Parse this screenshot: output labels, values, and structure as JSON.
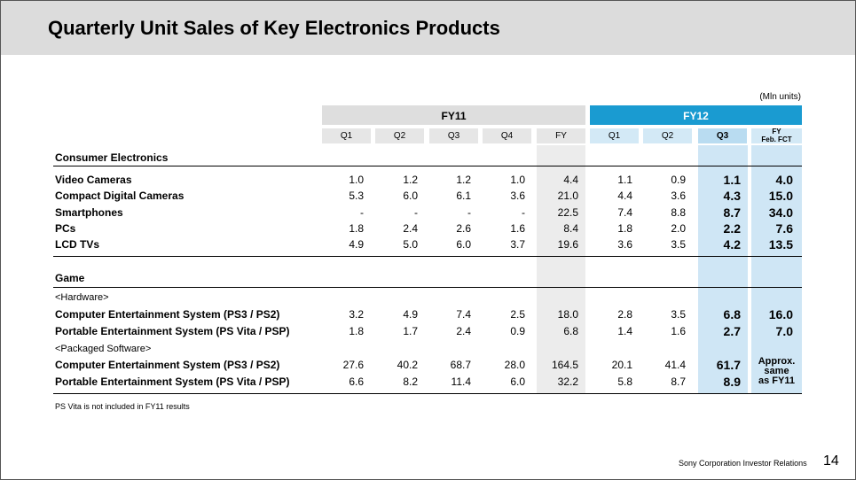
{
  "title": "Quarterly Unit Sales of Key Electronics Products",
  "units": "(Mln units)",
  "colors": {
    "fy12_header": "#1a9bd1",
    "fy11_header": "#dedede",
    "highlight": "#cfe6f5"
  },
  "headers": {
    "fy11": "FY11",
    "fy12": "FY12",
    "periods": [
      "Q1",
      "Q2",
      "Q3",
      "Q4",
      "FY",
      "Q1",
      "Q2",
      "Q3"
    ],
    "fct_line1": "FY",
    "fct_line2": "Feb. FCT"
  },
  "sections": {
    "consumer": "Consumer Electronics",
    "game": "Game",
    "hardware": "<Hardware>",
    "software": "<Packaged Software>"
  },
  "consumer_rows": [
    {
      "label": "Video Cameras",
      "values": [
        "1.0",
        "1.2",
        "1.2",
        "1.0",
        "4.4",
        "1.1",
        "0.9",
        "1.1",
        "4.0"
      ]
    },
    {
      "label": "Compact Digital Cameras",
      "values": [
        "5.3",
        "6.0",
        "6.1",
        "3.6",
        "21.0",
        "4.4",
        "3.6",
        "4.3",
        "15.0"
      ]
    },
    {
      "label": "Smartphones",
      "values": [
        "-",
        "-",
        "-",
        "-",
        "22.5",
        "7.4",
        "8.8",
        "8.7",
        "34.0"
      ]
    },
    {
      "label": "PCs",
      "values": [
        "1.8",
        "2.4",
        "2.6",
        "1.6",
        "8.4",
        "1.8",
        "2.0",
        "2.2",
        "7.6"
      ]
    },
    {
      "label": "LCD TVs",
      "values": [
        "4.9",
        "5.0",
        "6.0",
        "3.7",
        "19.6",
        "3.6",
        "3.5",
        "4.2",
        "13.5"
      ]
    }
  ],
  "hardware_rows": [
    {
      "pre": "Computer Entertainment System (",
      "mid": "PS3 / PS2",
      "post": ")",
      "values": [
        "3.2",
        "4.9",
        "7.4",
        "2.5",
        "18.0",
        "2.8",
        "3.5",
        "6.8",
        "16.0"
      ]
    },
    {
      "pre": "Portable Entertainment System (",
      "mid": "PS Vita / PSP",
      "post": ")",
      "values": [
        "1.8",
        "1.7",
        "2.4",
        "0.9",
        "6.8",
        "1.4",
        "1.6",
        "2.7",
        "7.0"
      ]
    }
  ],
  "software_rows": [
    {
      "pre": "Computer Entertainment System (",
      "mid": "PS3 / PS2",
      "post": ")",
      "values": [
        "27.6",
        "40.2",
        "68.7",
        "28.0",
        "164.5",
        "20.1",
        "41.4",
        "61.7"
      ]
    },
    {
      "pre": "Portable Entertainment System (",
      "mid": "PS Vita / PSP",
      "post": ")",
      "values": [
        "6.6",
        "8.2",
        "11.4",
        "6.0",
        "32.2",
        "5.8",
        "8.7",
        "8.9"
      ]
    }
  ],
  "software_fct": [
    "Approx.",
    "same",
    "as FY11"
  ],
  "note": "PS Vita is not included in FY11 results",
  "footer": "Sony Corporation  Investor Relations",
  "page_number": "14"
}
